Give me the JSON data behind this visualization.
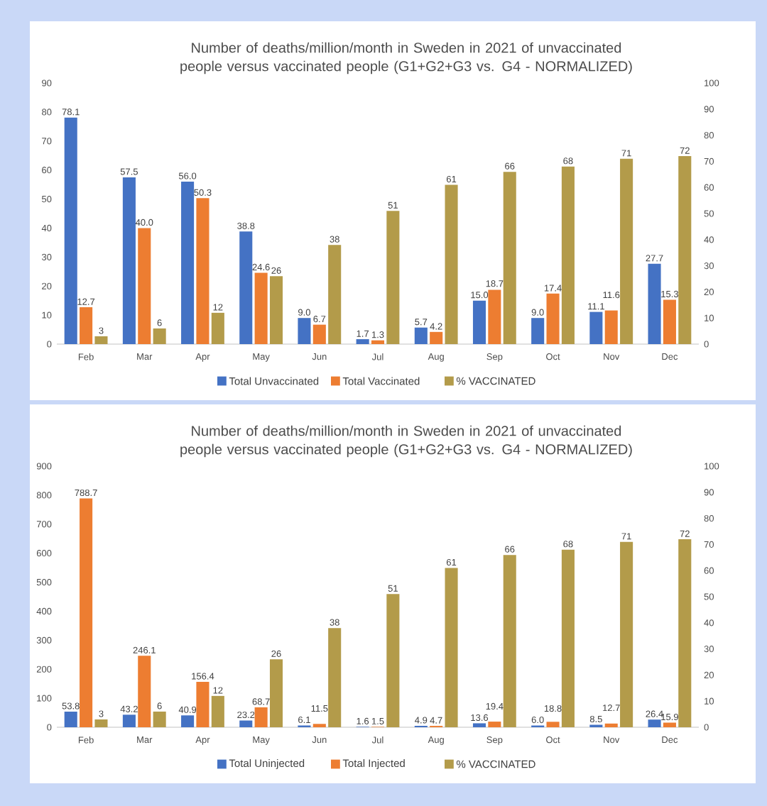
{
  "chart_data": [
    {
      "type": "bar",
      "title": "Number of deaths/million/month in Sweden in 2021 of unvaccinated people versus vaccinated people (G1+G2+G3 vs. G4 - NORMALIZED)",
      "categories": [
        "Feb",
        "Mar",
        "Apr",
        "May",
        "Jun",
        "Jul",
        "Aug",
        "Sep",
        "Oct",
        "Nov",
        "Dec"
      ],
      "series": [
        {
          "name": "Total Unvaccinated",
          "color": "#4472c4",
          "values": [
            78.1,
            57.5,
            56.0,
            38.8,
            9.0,
            1.7,
            5.7,
            15.0,
            9.0,
            11.1,
            27.7
          ],
          "value_labels": [
            "78.1",
            "57.5",
            "56.0",
            "38.8",
            "9.0",
            "1.7",
            "5.7",
            "15.0",
            "9.0",
            "11.1",
            "27.7"
          ]
        },
        {
          "name": "Total Vaccinated",
          "color": "#ed7d31",
          "values": [
            12.7,
            40.0,
            50.3,
            24.6,
            6.7,
            1.3,
            4.2,
            18.7,
            17.4,
            11.6,
            15.3
          ],
          "value_labels": [
            "12.7",
            "40.0",
            "50.3",
            "24.6",
            "6.7",
            "1.3",
            "4.2",
            "18.7",
            "17.4",
            "11.6",
            "15.3"
          ]
        },
        {
          "name": "% VACCINATED",
          "color": "#b39b4a",
          "axis": "y2",
          "values": [
            3,
            6,
            12,
            26,
            38,
            51,
            61,
            66,
            68,
            71,
            72
          ],
          "value_labels": [
            "3",
            "6",
            "12",
            "26",
            "38",
            "51",
            "61",
            "66",
            "68",
            "71",
            "72"
          ]
        }
      ],
      "ylim": [
        0,
        90
      ],
      "yticks": [
        0,
        10,
        20,
        30,
        40,
        50,
        60,
        70,
        80,
        90
      ],
      "y2lim": [
        0,
        100
      ],
      "y2ticks": [
        0,
        10,
        20,
        30,
        40,
        50,
        60,
        70,
        80,
        90,
        100
      ],
      "legend": "bottom"
    },
    {
      "type": "bar",
      "title": "Number of deaths/million/month in Sweden in 2021 of unvaccinated people versus vaccinated people (G1+G2+G3 vs. G4 - NORMALIZED)",
      "categories": [
        "Feb",
        "Mar",
        "Apr",
        "May",
        "Jun",
        "Jul",
        "Aug",
        "Sep",
        "Oct",
        "Nov",
        "Dec"
      ],
      "series": [
        {
          "name": "Total Uninjected",
          "color": "#4472c4",
          "values": [
            53.8,
            43.2,
            40.9,
            23.2,
            6.1,
            1.6,
            4.9,
            13.6,
            6.0,
            8.5,
            26.4
          ],
          "value_labels": [
            "53.8",
            "43.2",
            "40.9",
            "23.2",
            "6.1",
            "1.6",
            "4.9",
            "13.6",
            "6.0",
            "8.5",
            "26.4"
          ]
        },
        {
          "name": "Total Injected",
          "color": "#ed7d31",
          "values": [
            788.7,
            246.1,
            156.4,
            68.7,
            11.5,
            1.5,
            4.7,
            19.4,
            18.8,
            12.7,
            15.9
          ],
          "value_labels": [
            "788.7",
            "246.1",
            "156.4",
            "68.7",
            "11.5",
            "1.5",
            "4.7",
            "19.4",
            "18.8",
            "12.7",
            "15.9"
          ]
        },
        {
          "name": "% VACCINATED",
          "color": "#b39b4a",
          "axis": "y2",
          "values": [
            3,
            6,
            12,
            26,
            38,
            51,
            61,
            66,
            68,
            71,
            72
          ],
          "value_labels": [
            "3",
            "6",
            "12",
            "26",
            "38",
            "51",
            "61",
            "66",
            "68",
            "71",
            "72"
          ]
        }
      ],
      "ylim": [
        0,
        900
      ],
      "yticks": [
        0,
        100,
        200,
        300,
        400,
        500,
        600,
        700,
        800,
        900
      ],
      "y2lim": [
        0,
        100
      ],
      "y2ticks": [
        0,
        10,
        20,
        30,
        40,
        50,
        60,
        70,
        80,
        90,
        100
      ],
      "legend": "bottom"
    }
  ]
}
